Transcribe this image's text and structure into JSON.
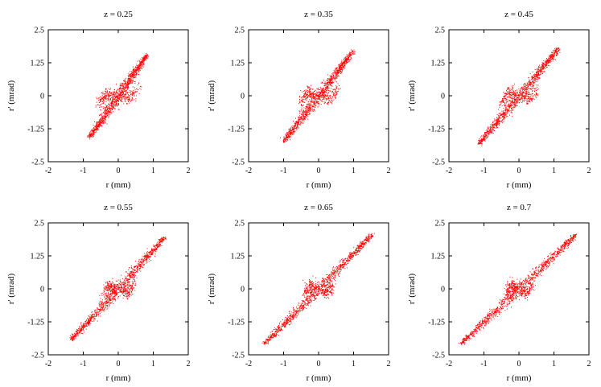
{
  "chart_data": [
    {
      "type": "scatter",
      "title": "z = 0.25",
      "xlabel": "r (mm)",
      "ylabel": "r' (mrad)",
      "xlim": [
        -2,
        2
      ],
      "ylim": [
        -2.5,
        2.5
      ],
      "xticks": [
        "-2",
        "-1",
        "0",
        "1",
        "2"
      ],
      "yticks": [
        "2.5",
        "1.25",
        "0",
        "-1.25",
        "-2.5"
      ],
      "color": "#ff0000",
      "band": {
        "x_start": -0.82,
        "y_start": -1.55,
        "x_end": 0.8,
        "y_end": 1.55,
        "hump_x": 0.33,
        "hump_y": 0.3
      },
      "points": [
        [
          -0.8,
          -1.5
        ],
        [
          -0.5,
          -0.9
        ],
        [
          -0.35,
          0.25
        ],
        [
          -0.2,
          0.1
        ],
        [
          0.0,
          0.0
        ],
        [
          0.25,
          -0.3
        ],
        [
          0.5,
          0.9
        ],
        [
          0.8,
          1.5
        ]
      ]
    },
    {
      "type": "scatter",
      "title": "z = 0.35",
      "xlabel": "r (mm)",
      "ylabel": "r' (mrad)",
      "xlim": [
        -2,
        2
      ],
      "ylim": [
        -2.5,
        2.5
      ],
      "xticks": [
        "-2",
        "-1",
        "0",
        "1",
        "2"
      ],
      "yticks": [
        "2.5",
        "1.25",
        "0",
        "-1.25",
        "-2.5"
      ],
      "color": "#ff0000",
      "band": {
        "x_start": -1.0,
        "y_start": -1.7,
        "x_end": 0.97,
        "y_end": 1.7,
        "hump_x": 0.3,
        "hump_y": 0.3
      },
      "points": [
        [
          -1.0,
          -1.7
        ],
        [
          -0.6,
          -1.0
        ],
        [
          -0.3,
          0.3
        ],
        [
          -0.15,
          0.05
        ],
        [
          0.0,
          0.0
        ],
        [
          0.25,
          -0.3
        ],
        [
          0.6,
          1.05
        ],
        [
          0.97,
          1.7
        ]
      ]
    },
    {
      "type": "scatter",
      "title": "z = 0.45",
      "xlabel": "r (mm)",
      "ylabel": "r' (mrad)",
      "xlim": [
        -2,
        2
      ],
      "ylim": [
        -2.5,
        2.5
      ],
      "xticks": [
        "-2",
        "-1",
        "0",
        "1",
        "2"
      ],
      "yticks": [
        "2.5",
        "1.25",
        "0",
        "-1.25",
        "-2.5"
      ],
      "color": "#ff0000",
      "band": {
        "x_start": -1.15,
        "y_start": -1.8,
        "x_end": 1.12,
        "y_end": 1.8,
        "hump_x": 0.28,
        "hump_y": 0.3
      },
      "points": [
        [
          -1.15,
          -1.8
        ],
        [
          -0.7,
          -1.1
        ],
        [
          -0.3,
          0.3
        ],
        [
          -0.15,
          0.05
        ],
        [
          0.0,
          0.0
        ],
        [
          0.25,
          -0.3
        ],
        [
          0.7,
          1.1
        ],
        [
          1.12,
          1.8
        ]
      ]
    },
    {
      "type": "scatter",
      "title": "z = 0.55",
      "xlabel": "r (mm)",
      "ylabel": "r' (mrad)",
      "xlim": [
        -2,
        2
      ],
      "ylim": [
        -2.5,
        2.5
      ],
      "xticks": [
        "-2",
        "-1",
        "0",
        "1",
        "2"
      ],
      "yticks": [
        "2.5",
        "1.25",
        "0",
        "-1.25",
        "-2.5"
      ],
      "color": "#ff0000",
      "band": {
        "x_start": -1.35,
        "y_start": -1.9,
        "x_end": 1.3,
        "y_end": 1.95,
        "hump_x": 0.25,
        "hump_y": 0.28
      },
      "points": [
        [
          -1.35,
          -1.9
        ],
        [
          -0.8,
          -1.2
        ],
        [
          -0.25,
          0.28
        ],
        [
          -0.1,
          0.05
        ],
        [
          0.0,
          0.0
        ],
        [
          0.25,
          -0.28
        ],
        [
          0.8,
          1.25
        ],
        [
          1.3,
          1.95
        ]
      ]
    },
    {
      "type": "scatter",
      "title": "z = 0.65",
      "xlabel": "r (mm)",
      "ylabel": "r' (mrad)",
      "xlim": [
        -2,
        2
      ],
      "ylim": [
        -2.5,
        2.5
      ],
      "xticks": [
        "-2",
        "-1",
        "0",
        "1",
        "2"
      ],
      "yticks": [
        "2.5",
        "1.25",
        "0",
        "-1.25",
        "-2.5"
      ],
      "color": "#ff0000",
      "band": {
        "x_start": -1.55,
        "y_start": -2.05,
        "x_end": 1.5,
        "y_end": 2.05,
        "hump_x": 0.22,
        "hump_y": 0.25
      },
      "points": [
        [
          -1.55,
          -2.05
        ],
        [
          -0.9,
          -1.3
        ],
        [
          -0.22,
          0.25
        ],
        [
          -0.1,
          0.05
        ],
        [
          0.0,
          0.0
        ],
        [
          0.22,
          -0.25
        ],
        [
          0.9,
          1.3
        ],
        [
          1.5,
          2.05
        ]
      ]
    },
    {
      "type": "scatter",
      "title": "z = 0.7",
      "xlabel": "r (mm)",
      "ylabel": "r' (mrad)",
      "xlim": [
        -2,
        2
      ],
      "ylim": [
        -2.5,
        2.5
      ],
      "xticks": [
        "-2",
        "-1",
        "0",
        "1",
        "2"
      ],
      "yticks": [
        "2.5",
        "1.25",
        "0",
        "-1.25",
        "-2.5"
      ],
      "color": "#ff0000",
      "band": {
        "x_start": -1.65,
        "y_start": -2.05,
        "x_end": 1.6,
        "y_end": 2.05,
        "hump_x": 0.2,
        "hump_y": 0.25
      },
      "points": [
        [
          -1.65,
          -2.05
        ],
        [
          -0.95,
          -1.3
        ],
        [
          -0.2,
          0.25
        ],
        [
          -0.1,
          0.05
        ],
        [
          0.0,
          0.0
        ],
        [
          0.2,
          -0.25
        ],
        [
          0.95,
          1.3
        ],
        [
          1.6,
          2.05
        ]
      ]
    }
  ]
}
